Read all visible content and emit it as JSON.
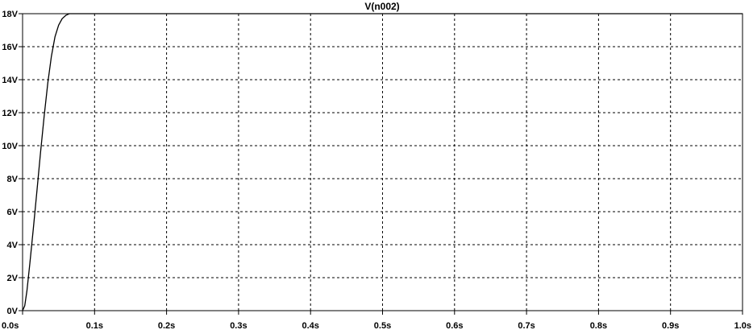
{
  "chart_data": {
    "type": "line",
    "title": "V(n002)",
    "xlabel": "",
    "ylabel": "",
    "xlim": [
      0,
      1.0
    ],
    "ylim": [
      0,
      18
    ],
    "grid": true,
    "x_ticks": [
      0,
      0.1,
      0.2,
      0.3,
      0.4,
      0.5,
      0.6,
      0.7,
      0.8,
      0.9,
      1.0
    ],
    "x_tick_labels": [
      "0.0s",
      "0.1s",
      "0.2s",
      "0.3s",
      "0.4s",
      "0.5s",
      "0.6s",
      "0.7s",
      "0.8s",
      "0.9s",
      "1.0s"
    ],
    "y_ticks": [
      0,
      2,
      4,
      6,
      8,
      10,
      12,
      14,
      16,
      18
    ],
    "y_tick_labels": [
      "0V",
      "2V",
      "4V",
      "6V",
      "8V",
      "10V",
      "12V",
      "14V",
      "16V",
      "18V"
    ],
    "colors": {
      "series": "#000000",
      "grid": "#000000",
      "background": "#ffffff"
    },
    "series": [
      {
        "x": [
          0,
          0.003,
          0.006,
          0.01,
          0.015,
          0.02,
          0.025,
          0.03,
          0.035,
          0.04,
          0.045,
          0.05,
          0.055,
          0.06,
          0.065,
          0.07,
          0.075,
          0.08,
          0.085,
          0.09,
          0.095,
          0.1,
          0.15,
          0.2,
          0.3,
          0.4,
          0.5,
          0.6,
          0.7,
          0.8,
          0.9,
          1.0
        ],
        "y": [
          0,
          0.3,
          1.2,
          2.8,
          5.0,
          7.3,
          9.6,
          11.8,
          13.8,
          15.4,
          16.6,
          17.3,
          17.7,
          17.9,
          18.0,
          18.0,
          18.0,
          18.0,
          18.0,
          18.0,
          18.0,
          18.0,
          18.0,
          18.0,
          18.0,
          18.0,
          18.0,
          18.0,
          18.0,
          18.0,
          18.0,
          18.0
        ]
      }
    ]
  }
}
